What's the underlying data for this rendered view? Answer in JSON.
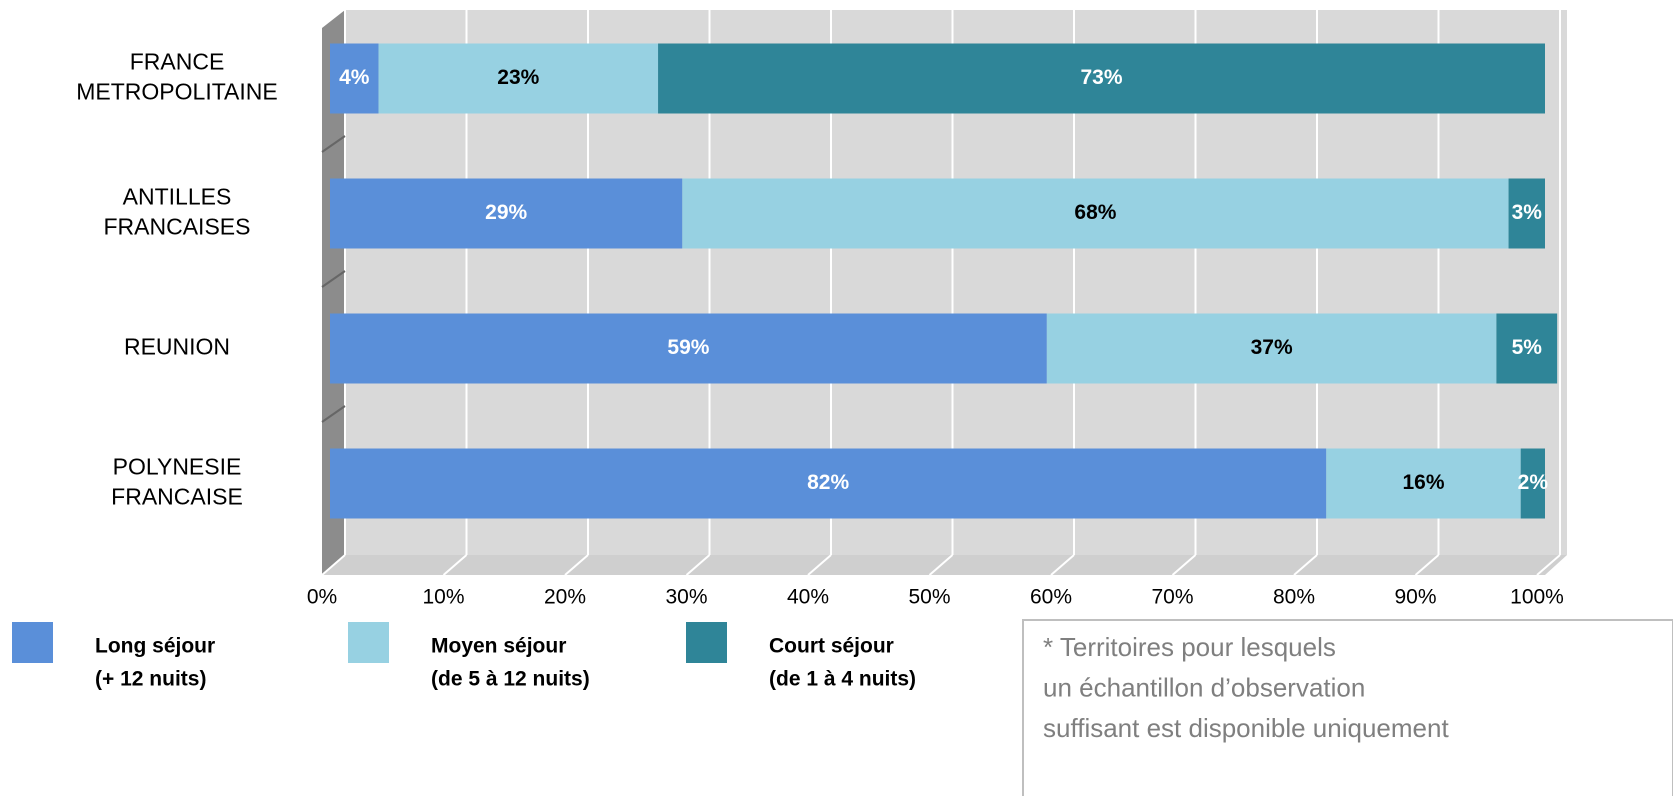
{
  "chart_data": {
    "type": "stacked-bar-horizontal",
    "categories": [
      "FRANCE\nMETROPOLITAINE",
      "ANTILLES\nFRANCAISES",
      "REUNION",
      "POLYNESIE\nFRANCAISE"
    ],
    "series": [
      {
        "name": "Long séjour\n(+ 12 nuits)",
        "color": "#5a8fd9",
        "label_color": "#ffffff",
        "values": [
          4,
          29,
          59,
          82
        ],
        "value_labels": [
          "4%",
          "29%",
          "59%",
          "82%"
        ]
      },
      {
        "name": "Moyen séjour\n(de 5 à 12 nuits)",
        "color": "#97d1e2",
        "label_color": "#000000",
        "values": [
          23,
          68,
          37,
          16
        ],
        "value_labels": [
          "23%",
          "68%",
          "37%",
          "16%"
        ]
      },
      {
        "name": "Court séjour\n(de 1 à 4 nuits)",
        "color": "#2f8598",
        "label_color": "#ffffff",
        "values": [
          73,
          3,
          5,
          2
        ],
        "value_labels": [
          "73%",
          "3%",
          "5%",
          "2%"
        ]
      }
    ],
    "xlim": [
      0,
      100
    ],
    "xticks": [
      {
        "value": 0,
        "label": "0%"
      },
      {
        "value": 10,
        "label": "10%"
      },
      {
        "value": 20,
        "label": "20%"
      },
      {
        "value": 30,
        "label": "30%"
      },
      {
        "value": 40,
        "label": "40%"
      },
      {
        "value": 50,
        "label": "50%"
      },
      {
        "value": 60,
        "label": "60%"
      },
      {
        "value": 70,
        "label": "70%"
      },
      {
        "value": 80,
        "label": "80%"
      },
      {
        "value": 90,
        "label": "90%"
      },
      {
        "value": 100,
        "label": "100%"
      }
    ],
    "grid": true,
    "legend": "bottom",
    "annotation": [
      "* Territoires pour lesquels",
      "un échantillon d’observation",
      "suffisant est disponible uniquement"
    ]
  }
}
